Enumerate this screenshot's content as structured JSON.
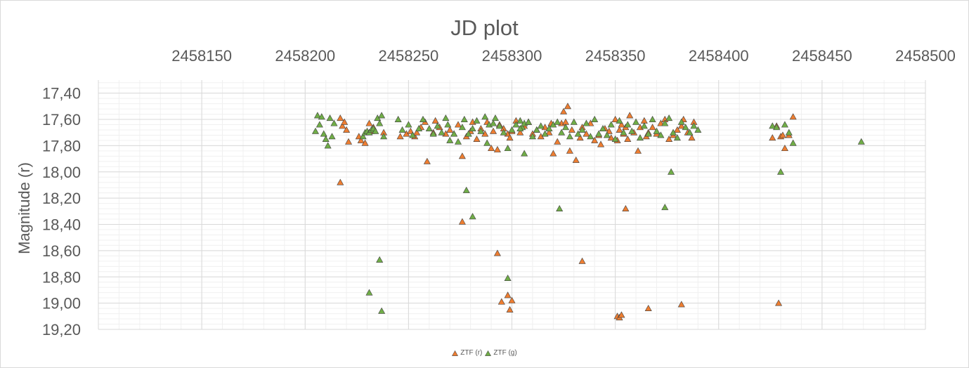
{
  "chart_data": {
    "type": "scatter",
    "title": "JD plot",
    "xlabel": "",
    "ylabel": "Magnitude (r)",
    "xlim": [
      2458100,
      2458500
    ],
    "ylim": [
      17.3,
      19.2
    ],
    "x_ticks": [
      "2458150",
      "2458200",
      "2458250",
      "2458300",
      "2458350",
      "2458400",
      "2458450",
      "2458500"
    ],
    "y_ticks": [
      "17,40",
      "17,60",
      "17,80",
      "18,00",
      "18,20",
      "18,40",
      "18,60",
      "18,80",
      "19,00",
      "19,20"
    ],
    "x_axis_position": "top",
    "y_axis_reversed": true,
    "grid": "major and minor",
    "legend_position": "bottom",
    "colors": {
      "r": "#ed7d31",
      "g": "#70ad47",
      "marker_edge": "#404040",
      "grid_major": "#d9d9d9",
      "grid_minor": "#f0f0f0"
    },
    "series": [
      {
        "name": "ZTF (r)",
        "marker": "triangle",
        "color": "#ed7d31",
        "x": [
          2458217,
          2458218,
          2458219,
          2458220,
          2458221,
          2458226,
          2458227,
          2458229,
          2458231,
          2458232,
          2458233,
          2458238,
          2458246,
          2458249,
          2458251,
          2458253,
          2458254,
          2458256,
          2458258,
          2458259,
          2458262,
          2458263,
          2458265,
          2458268,
          2458270,
          2458272,
          2458274,
          2458276,
          2458278,
          2458280,
          2458281,
          2458283,
          2458285,
          2458287,
          2458288,
          2458290,
          2458291,
          2458293,
          2458294,
          2458296,
          2458298,
          2458299,
          2458300,
          2458302,
          2458304,
          2458306,
          2458308,
          2458310,
          2458312,
          2458314,
          2458316,
          2458318,
          2458319,
          2458320,
          2458322,
          2458324,
          2458325,
          2458326,
          2458327,
          2458328,
          2458329,
          2458331,
          2458333,
          2458334,
          2458336,
          2458338,
          2458340,
          2458342,
          2458343,
          2458345,
          2458347,
          2458348,
          2458350,
          2458351,
          2458352,
          2458353,
          2458354,
          2458355,
          2458356,
          2458357,
          2458359,
          2458361,
          2458362,
          2458364,
          2458365,
          2458366,
          2458368,
          2458370,
          2458372,
          2458374,
          2458376,
          2458378,
          2458380,
          2458382,
          2458383,
          2458385,
          2458387,
          2458388,
          2458217,
          2458276,
          2458293,
          2458298,
          2458299,
          2458295,
          2458300,
          2458334,
          2458351,
          2458352,
          2458353,
          2458355,
          2458366,
          2458382,
          2458426,
          2458428,
          2458429,
          2458430,
          2458431,
          2458432,
          2458434,
          2458436
        ],
        "y": [
          17.59,
          17.65,
          17.62,
          17.68,
          17.77,
          17.73,
          17.76,
          17.78,
          17.63,
          17.69,
          17.66,
          17.7,
          17.73,
          17.71,
          17.69,
          17.73,
          17.7,
          17.66,
          17.62,
          17.92,
          17.7,
          17.61,
          17.66,
          17.71,
          17.68,
          17.71,
          17.64,
          17.88,
          17.73,
          17.69,
          17.62,
          17.75,
          17.67,
          17.71,
          17.62,
          17.82,
          17.69,
          17.83,
          17.64,
          17.67,
          17.71,
          17.74,
          17.69,
          17.61,
          17.7,
          17.65,
          17.62,
          17.71,
          17.68,
          17.73,
          17.66,
          17.7,
          17.63,
          17.86,
          17.77,
          17.63,
          17.54,
          17.62,
          17.5,
          17.84,
          17.68,
          17.91,
          17.74,
          17.66,
          17.71,
          17.63,
          17.76,
          17.72,
          17.79,
          17.67,
          17.69,
          17.74,
          17.6,
          17.76,
          17.68,
          17.64,
          17.71,
          17.66,
          17.75,
          17.57,
          17.7,
          17.84,
          17.66,
          17.61,
          17.73,
          17.7,
          17.66,
          17.71,
          17.63,
          17.6,
          17.75,
          17.72,
          17.68,
          17.65,
          17.6,
          17.7,
          17.74,
          17.62,
          18.08,
          18.38,
          18.62,
          18.94,
          19.05,
          18.99,
          18.98,
          18.68,
          19.1,
          19.11,
          19.09,
          18.28,
          19.04,
          19.01,
          17.74,
          17.65,
          19.0,
          17.73,
          17.72,
          17.82,
          17.72,
          17.58
        ],
        "x_comment_free": true
      },
      {
        "name": "ZTF (g)",
        "marker": "triangle",
        "color": "#70ad47",
        "x": [
          2458205,
          2458206,
          2458207,
          2458208,
          2458209,
          2458210,
          2458211,
          2458212,
          2458213,
          2458214,
          2458228,
          2458229,
          2458230,
          2458231,
          2458232,
          2458233,
          2458234,
          2458235,
          2458236,
          2458237,
          2458238,
          2458245,
          2458247,
          2458250,
          2458252,
          2458255,
          2458257,
          2458260,
          2458262,
          2458264,
          2458266,
          2458268,
          2458269,
          2458270,
          2458272,
          2458274,
          2458276,
          2458277,
          2458279,
          2458281,
          2458283,
          2458285,
          2458287,
          2458289,
          2458291,
          2458292,
          2458294,
          2458296,
          2458298,
          2458300,
          2458302,
          2458304,
          2458305,
          2458306,
          2458308,
          2458310,
          2458312,
          2458314,
          2458316,
          2458318,
          2458320,
          2458322,
          2458324,
          2458326,
          2458328,
          2458330,
          2458332,
          2458334,
          2458336,
          2458338,
          2458340,
          2458342,
          2458344,
          2458346,
          2458348,
          2458350,
          2458352,
          2458354,
          2458356,
          2458358,
          2458360,
          2458362,
          2458364,
          2458366,
          2458368,
          2458370,
          2458372,
          2458374,
          2458376,
          2458378,
          2458380,
          2458382,
          2458384,
          2458386,
          2458388,
          2458390,
          2458231,
          2458236,
          2458237,
          2458278,
          2458281,
          2458288,
          2458298,
          2458304,
          2458306,
          2458323,
          2458374,
          2458377,
          2458426,
          2458428,
          2458430,
          2458432,
          2458434,
          2458436,
          2458469
        ],
        "y": [
          17.69,
          17.57,
          17.64,
          17.58,
          17.71,
          17.75,
          17.8,
          17.59,
          17.73,
          17.63,
          17.73,
          17.7,
          17.69,
          17.7,
          17.68,
          17.67,
          17.69,
          17.59,
          17.63,
          17.57,
          17.73,
          17.6,
          17.68,
          17.64,
          17.72,
          17.67,
          17.6,
          17.67,
          17.71,
          17.65,
          17.7,
          17.59,
          17.64,
          17.76,
          17.71,
          17.77,
          17.66,
          17.6,
          17.71,
          17.67,
          17.61,
          17.69,
          17.58,
          17.64,
          17.63,
          17.59,
          17.65,
          17.7,
          17.82,
          17.68,
          17.64,
          17.61,
          17.66,
          17.63,
          17.62,
          17.73,
          17.68,
          17.65,
          17.71,
          17.67,
          17.64,
          17.62,
          17.7,
          17.66,
          17.73,
          17.62,
          17.71,
          17.68,
          17.63,
          17.73,
          17.6,
          17.71,
          17.67,
          17.72,
          17.64,
          17.75,
          17.61,
          17.7,
          17.64,
          17.69,
          17.62,
          17.74,
          17.65,
          17.71,
          17.6,
          17.69,
          17.72,
          17.63,
          17.59,
          17.7,
          17.74,
          17.62,
          17.66,
          17.7,
          17.65,
          17.68,
          18.92,
          18.67,
          19.06,
          18.14,
          18.34,
          17.78,
          18.81,
          17.67,
          17.86,
          18.28,
          18.27,
          18.0,
          17.65,
          17.66,
          18.0,
          17.64,
          17.7,
          17.78,
          17.77
        ]
      }
    ]
  }
}
